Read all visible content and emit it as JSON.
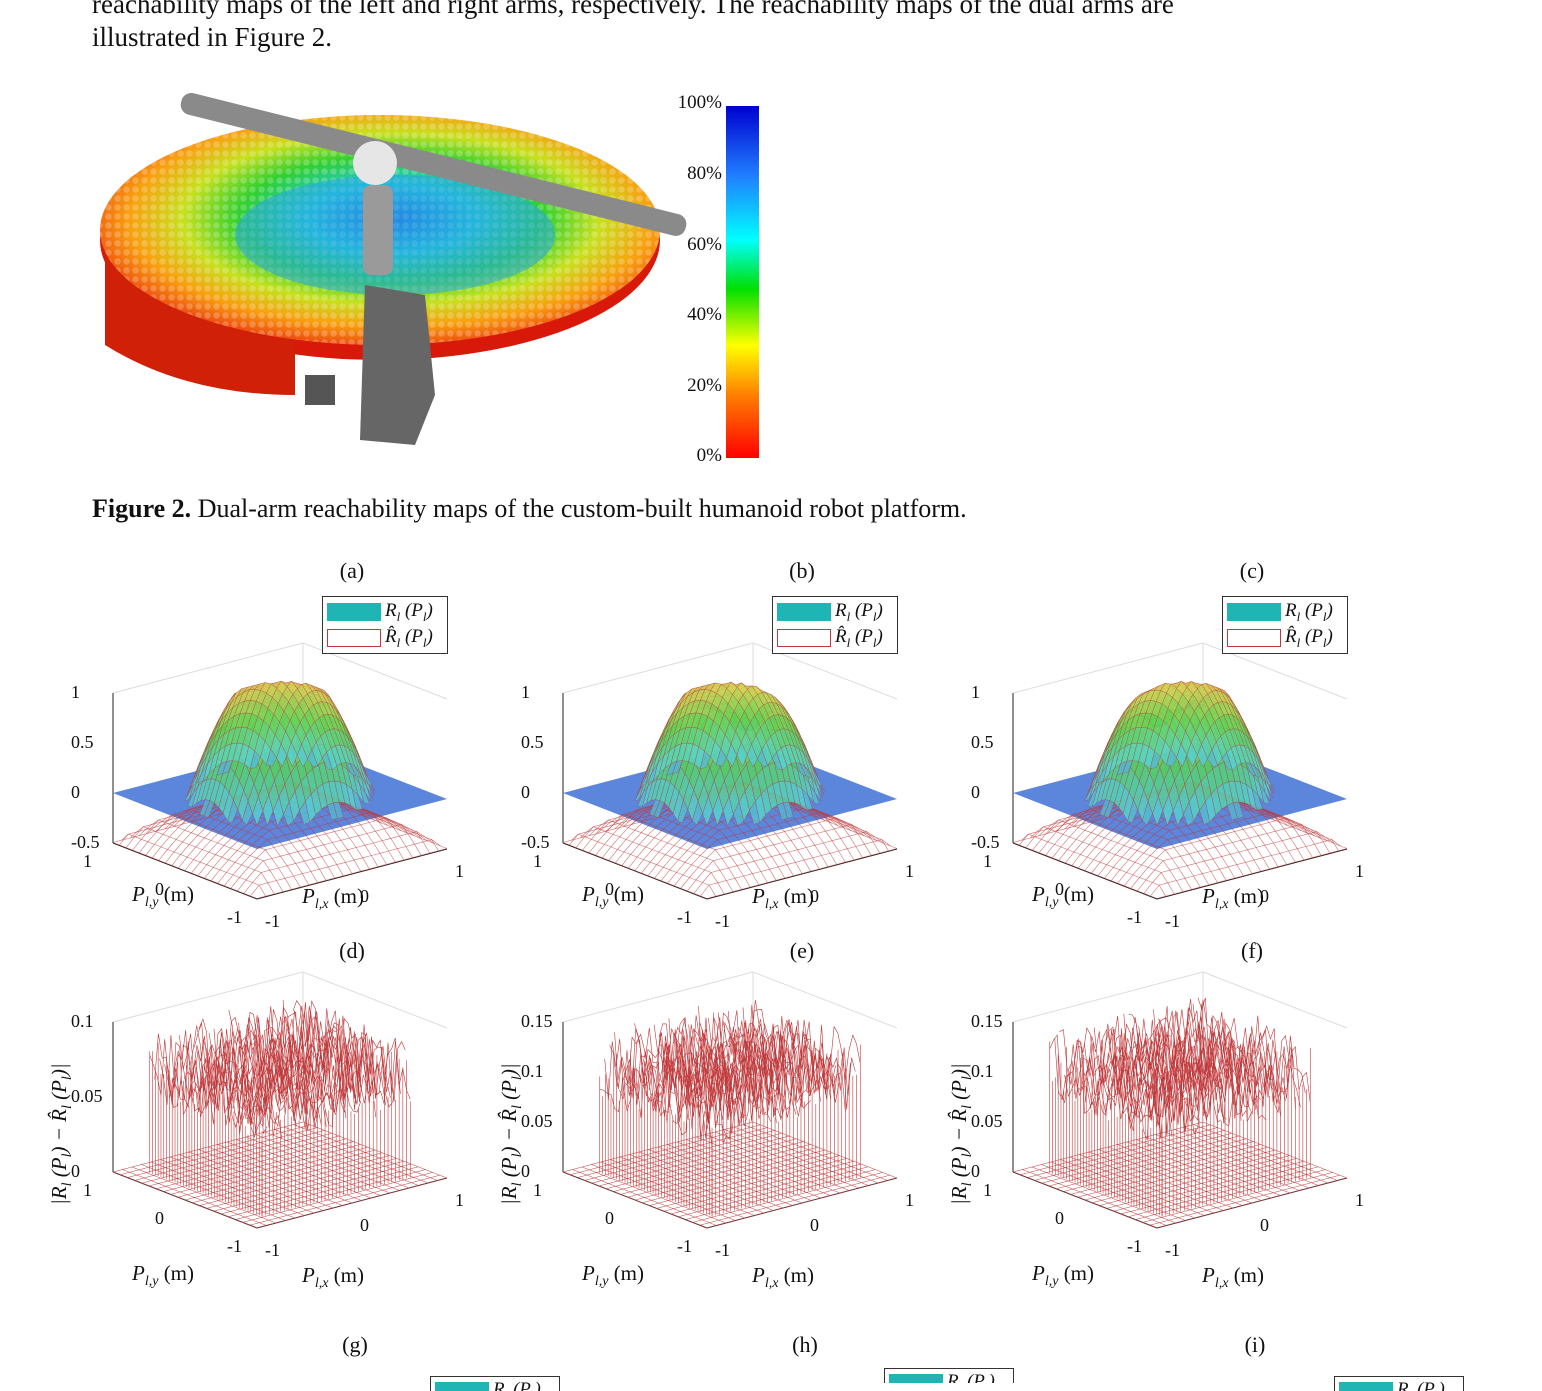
{
  "text": {
    "line1": "reachability maps of the left and right arms, respectively. The reachability maps of the dual arms are",
    "line2": "illustrated in Figure 2."
  },
  "figure2": {
    "caption_label": "Figure 2.",
    "caption_text": " Dual-arm reachability maps of the custom-built humanoid robot platform.",
    "colorbar_ticks": [
      "100%",
      "80%",
      "60%",
      "40%",
      "20%",
      "0%"
    ]
  },
  "panels": {
    "top_row": [
      {
        "letter": "(a)"
      },
      {
        "letter": "(b)"
      },
      {
        "letter": "(c)"
      }
    ],
    "mid_row": [
      {
        "letter": "(d)"
      },
      {
        "letter": "(e)"
      },
      {
        "letter": "(f)"
      }
    ],
    "bottom_row": [
      {
        "letter": "(g)"
      },
      {
        "letter": "(h)"
      },
      {
        "letter": "(i)"
      }
    ],
    "legend_true": "R_l (P_l)",
    "legend_est": "R̂_l (P_l)",
    "zticks_top": [
      "1",
      "0.5",
      "0",
      "-0.5"
    ],
    "zticks_d": [
      "0.1",
      "0.05",
      "0"
    ],
    "zticks_ef": [
      "0.15",
      "0.1",
      "0.05",
      "0"
    ],
    "y_ticks": [
      "1",
      "0",
      "-1"
    ],
    "x_ticks": [
      "-1",
      "0",
      "1"
    ],
    "ylabel": "P_{l,y} (m)",
    "xlabel": "P_{l,x} (m)",
    "zlabel_err": "|R_l (P_l) − R̂_l (P_l)|"
  },
  "colors": {
    "surface_blue": "#4a78d8",
    "mesh_red": "#c0393b",
    "legend_teal": "#1fb5b5"
  }
}
